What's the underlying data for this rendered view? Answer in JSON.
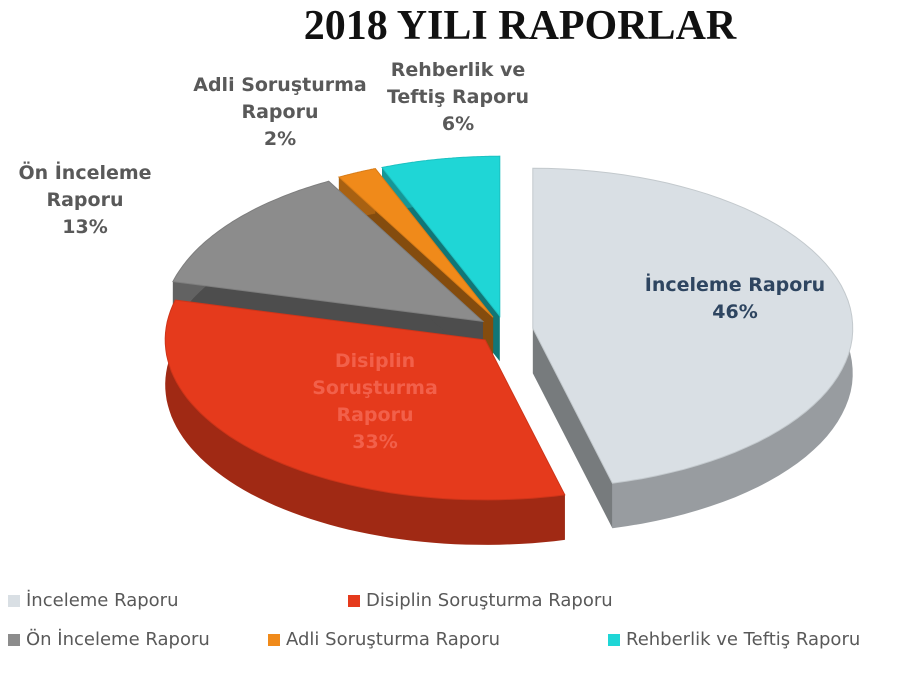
{
  "chart_data": {
    "type": "pie",
    "title": "2018 YILI RAPORLAR",
    "categories": [
      "İnceleme Raporu",
      "Disiplin Soruşturma Raporu",
      "Ön İnceleme Raporu",
      "Adli Soruşturma Raporu",
      "Rehberlik ve Teftiş Raporu"
    ],
    "values": [
      46,
      33,
      13,
      2,
      6
    ],
    "value_labels": [
      "46%",
      "33%",
      "13%",
      "2%",
      "6%"
    ],
    "colors": [
      "#d9dfe4",
      "#e53a1c",
      "#8c8c8c",
      "#f08a1a",
      "#1fd6d6"
    ],
    "legend": "bottom"
  }
}
